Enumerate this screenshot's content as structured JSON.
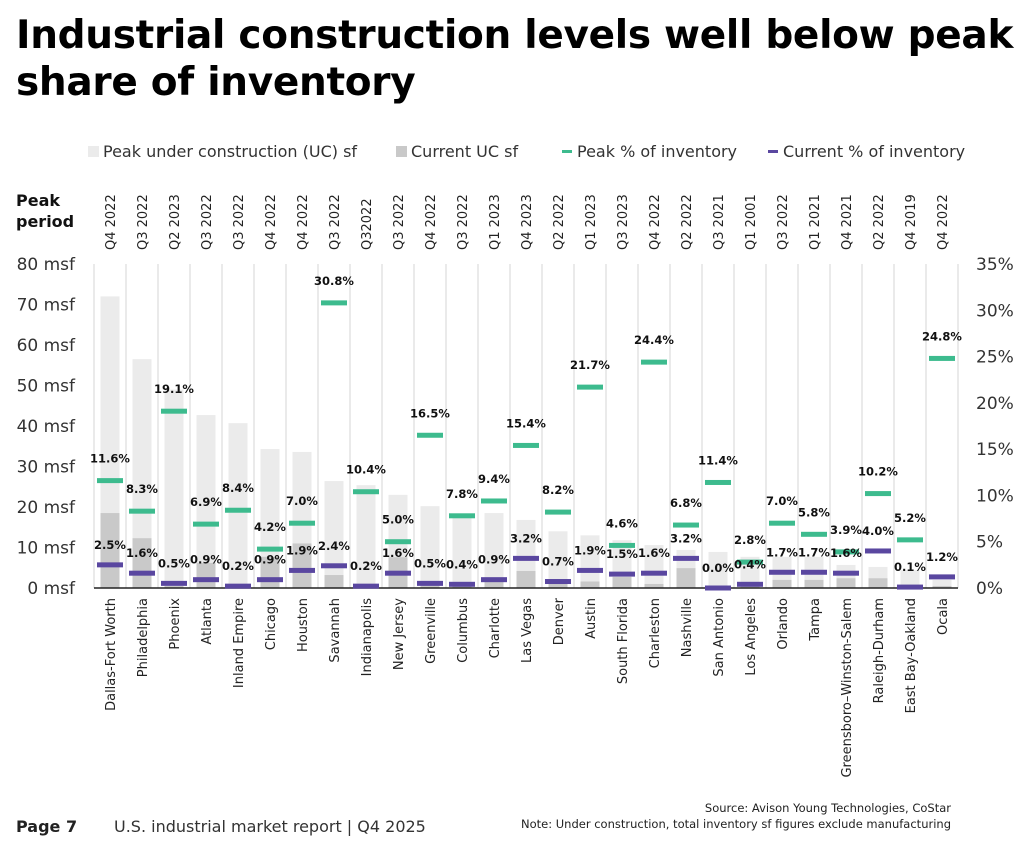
{
  "title": "Industrial construction levels well below peak share of inventory",
  "footer": {
    "page": "Page 7",
    "report": "U.S. industrial market report | Q4 2025",
    "source": "Source: Avison Young Technologies, CoStar",
    "note": "Note: Under construction, total inventory sf figures exclude manufacturing"
  },
  "chart_data": {
    "type": "bar",
    "title": "",
    "peak_period_label": "Peak period",
    "legend": [
      {
        "name": "Peak under construction (UC) sf",
        "kind": "bar",
        "color": "#ebebeb"
      },
      {
        "name": "Current UC sf",
        "kind": "bar",
        "color": "#c9c9c9"
      },
      {
        "name": "Peak % of inventory",
        "kind": "marker",
        "color": "#3dbb8e"
      },
      {
        "name": "Current % of inventory",
        "kind": "marker",
        "color": "#5a47a0"
      }
    ],
    "legend_position": "top",
    "categories": [
      "Dallas-Fort Worth",
      "Philadelphia",
      "Phoenix",
      "Atlanta",
      "Inland Empire",
      "Chicago",
      "Houston",
      "Savannah",
      "Indianapolis",
      "New Jersey",
      "Greenville",
      "Columbus",
      "Charlotte",
      "Las Vegas",
      "Denver",
      "Austin",
      "South Florida",
      "Charleston",
      "Nashville",
      "San Antonio",
      "Los Angeles",
      "Orlando",
      "Tampa",
      "Greensboro–Winston-Salem",
      "Raleigh-Durham",
      "East Bay-Oakland",
      "Ocala"
    ],
    "peak_periods": [
      "Q4 2022",
      "Q3 2022",
      "Q2 2023",
      "Q3 2022",
      "Q3 2022",
      "Q4 2022",
      "Q4 2022",
      "Q3 2022",
      "Q32022",
      "Q3 2022",
      "Q4 2022",
      "Q3 2022",
      "Q1 2023",
      "Q4 2023",
      "Q2 2022",
      "Q1 2023",
      "Q3 2023",
      "Q4 2022",
      "Q2 2022",
      "Q3 2021",
      "Q1 2001",
      "Q3 2022",
      "Q1 2021",
      "Q4 2021",
      "Q2 2022",
      "Q4 2019",
      "Q4 2022"
    ],
    "series": [
      {
        "name": "Peak under construction (UC) sf",
        "axis": "left",
        "values": [
          72,
          56.5,
          49,
          42.7,
          40.7,
          34.3,
          33.6,
          26.4,
          25.4,
          23,
          20.2,
          17.5,
          18.5,
          16.8,
          14,
          13,
          11.8,
          10.6,
          9.4,
          8.9,
          7.7,
          7.7,
          7.7,
          5.7,
          5.2,
          4.4,
          2
        ]
      },
      {
        "name": "Current UC sf",
        "axis": "left",
        "values": [
          18.5,
          12.3,
          0.5,
          6.2,
          0.5,
          7.7,
          11,
          3.2,
          0.5,
          7.6,
          1,
          0.5,
          1.5,
          4.2,
          1,
          1.6,
          2.7,
          1,
          4.9,
          0.2,
          0.5,
          2,
          2,
          2.4,
          2.4,
          0.5,
          0.5
        ]
      },
      {
        "name": "Peak % of inventory",
        "axis": "right",
        "values": [
          11.6,
          8.3,
          19.1,
          6.9,
          8.4,
          4.2,
          7.0,
          30.8,
          10.4,
          5.0,
          16.5,
          7.8,
          9.4,
          15.4,
          8.2,
          21.7,
          4.6,
          24.4,
          6.8,
          11.4,
          2.8,
          7.0,
          5.8,
          3.9,
          10.2,
          5.2,
          24.8
        ],
        "labels": [
          "11.6%",
          "8.3%",
          "19.1%",
          "6.9%",
          "8.4%",
          "4.2%",
          "7.0%",
          "30.8%",
          "10.4%",
          "5.0%",
          "16.5%",
          "7.8%",
          "9.4%",
          "15.4%",
          "8.2%",
          "21.7%",
          "4.6%",
          "24.4%",
          "6.8%",
          "11.4%",
          "2.8%",
          "7.0%",
          "5.8%",
          "3.9%",
          "10.2%",
          "5.2%",
          "24.8%"
        ]
      },
      {
        "name": "Current % of inventory",
        "axis": "right",
        "values": [
          2.5,
          1.6,
          0.5,
          0.9,
          0.2,
          0.9,
          1.9,
          2.4,
          0.2,
          1.6,
          0.5,
          0.4,
          0.9,
          3.2,
          0.7,
          1.9,
          1.5,
          1.6,
          3.2,
          0.0,
          0.4,
          1.7,
          1.7,
          1.6,
          4.0,
          0.1,
          1.2
        ],
        "labels": [
          "2.5%",
          "1.6%",
          "0.5%",
          "0.9%",
          "0.2%",
          "0.9%",
          "1.9%",
          "2.4%",
          "0.2%",
          "1.6%",
          "0.5%",
          "0.4%",
          "0.9%",
          "3.2%",
          "0.7%",
          "1.9%",
          "1.5%",
          "1.6%",
          "3.2%",
          "0.0%",
          "0.4%",
          "1.7%",
          "1.7%",
          "1.6%",
          "4.0%",
          "0.1%",
          "1.2%"
        ]
      }
    ],
    "y_left": {
      "ylim": [
        0,
        80
      ],
      "ticks": [
        "0 msf",
        "10 msf",
        "20 msf",
        "30 msf",
        "40 msf",
        "50 msf",
        "60 msf",
        "70 msf",
        "80 msf"
      ]
    },
    "y_right": {
      "ylim": [
        0,
        35
      ],
      "ticks": [
        "0%",
        "5%",
        "10%",
        "15%",
        "20%",
        "25%",
        "30%",
        "35%"
      ]
    },
    "grid": false
  }
}
